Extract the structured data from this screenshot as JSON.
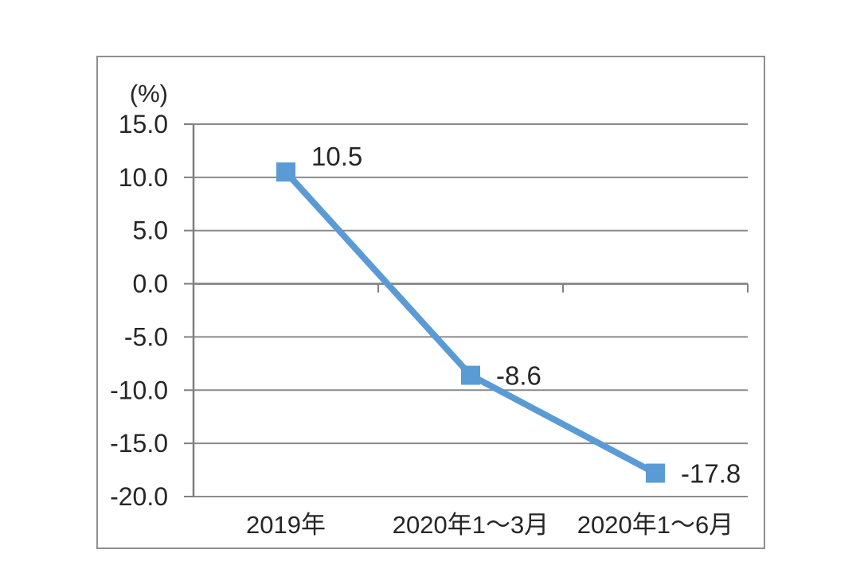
{
  "page": {
    "background_color": "#ffffff"
  },
  "chart": {
    "frame_border_color": "#8F8F8F",
    "unit_label": "(%)",
    "colors": {
      "series": "#5B9BD5",
      "gridline": "#8A8A8A",
      "axis": "#7F7F7F",
      "text": "#262626"
    }
  },
  "chart_data": {
    "type": "line",
    "title": "",
    "categories": [
      "2019年",
      "2020年1～3月",
      "2020年1～6月"
    ],
    "values": [
      10.5,
      -8.6,
      -17.8
    ],
    "data_labels": [
      "10.5",
      "-8.6",
      "-17.8"
    ],
    "xlabel": "",
    "ylabel": "(%)",
    "ylim": [
      -20.0,
      15.0
    ],
    "yticks": [
      15.0,
      10.0,
      5.0,
      0.0,
      -5.0,
      -10.0,
      -15.0,
      -20.0
    ],
    "ytick_labels": [
      "15.0",
      "10.0",
      "5.0",
      "0.0",
      "-5.0",
      "-10.0",
      "-15.0",
      "-20.0"
    ],
    "grid": true,
    "legend": "none",
    "marker": "square",
    "series_color": "#5B9BD5"
  }
}
